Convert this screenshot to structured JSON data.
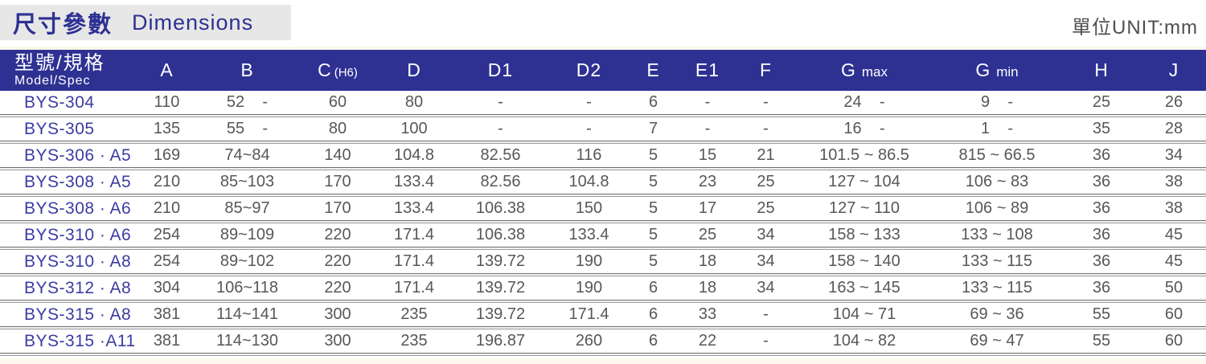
{
  "title": {
    "zh": "尺寸參數",
    "en": "Dimensions"
  },
  "unit_label": "單位UNIT:mm",
  "colors": {
    "header_blue": "#2e3192",
    "model_blue": "#3b3ca1",
    "data_gray": "#56575b",
    "title_band_gray": "#e7e7e7"
  },
  "table": {
    "header": {
      "model_main": "型號/規格",
      "model_sub": "Model/Spec",
      "cols": [
        {
          "main": "A",
          "sub": ""
        },
        {
          "main": "B",
          "sub": ""
        },
        {
          "main": "C",
          "sub": "(H6)"
        },
        {
          "main": "D",
          "sub": ""
        },
        {
          "main": "D1",
          "sub": ""
        },
        {
          "main": "D2",
          "sub": ""
        },
        {
          "main": "E",
          "sub": ""
        },
        {
          "main": "E1",
          "sub": ""
        },
        {
          "main": "F",
          "sub": ""
        },
        {
          "main": "G",
          "sub": "max"
        },
        {
          "main": "G",
          "sub": "min"
        },
        {
          "main": "H",
          "sub": ""
        },
        {
          "main": "J",
          "sub": ""
        }
      ]
    },
    "rows": [
      {
        "model": "BYS-304",
        "values": [
          "110",
          "52    -",
          "60",
          "80",
          "-",
          "-",
          "6",
          "-",
          "-",
          "24    -",
          "9    -",
          "25",
          "26"
        ]
      },
      {
        "model": "BYS-305",
        "values": [
          "135",
          "55    -",
          "80",
          "100",
          "-",
          "-",
          "7",
          "-",
          "-",
          "16    -",
          "1    -",
          "35",
          "28"
        ]
      },
      {
        "model": "BYS-306 · A5",
        "values": [
          "169",
          "74~84",
          "140",
          "104.8",
          "82.56",
          "116",
          "5",
          "15",
          "21",
          "101.5 ~ 86.5",
          "815 ~ 66.5",
          "36",
          "34"
        ]
      },
      {
        "model": "BYS-308 · A5",
        "values": [
          "210",
          "85~103",
          "170",
          "133.4",
          "82.56",
          "104.8",
          "5",
          "23",
          "25",
          "127 ~ 104",
          "106 ~ 83",
          "36",
          "38"
        ]
      },
      {
        "model": "BYS-308 · A6",
        "values": [
          "210",
          "85~97",
          "170",
          "133.4",
          "106.38",
          "150",
          "5",
          "17",
          "25",
          "127 ~ 110",
          "106 ~ 89",
          "36",
          "38"
        ]
      },
      {
        "model": "BYS-310 · A6",
        "values": [
          "254",
          "89~109",
          "220",
          "171.4",
          "106.38",
          "133.4",
          "5",
          "25",
          "34",
          "158 ~ 133",
          "133 ~ 108",
          "36",
          "45"
        ]
      },
      {
        "model": "BYS-310 · A8",
        "values": [
          "254",
          "89~102",
          "220",
          "171.4",
          "139.72",
          "190",
          "5",
          "18",
          "34",
          "158 ~ 140",
          "133 ~ 115",
          "36",
          "45"
        ]
      },
      {
        "model": "BYS-312 · A8",
        "values": [
          "304",
          "106~118",
          "220",
          "171.4",
          "139.72",
          "190",
          "6",
          "18",
          "34",
          "163 ~ 145",
          "133 ~ 115",
          "36",
          "50"
        ]
      },
      {
        "model": "BYS-315 · A8",
        "values": [
          "381",
          "114~141",
          "300",
          "235",
          "139.72",
          "171.4",
          "6",
          "33",
          "-",
          "104 ~ 71",
          "69 ~ 36",
          "55",
          "60"
        ]
      },
      {
        "model": "BYS-315 ·A11",
        "values": [
          "381",
          "114~130",
          "300",
          "235",
          "196.87",
          "260",
          "6",
          "22",
          "-",
          "104 ~ 82",
          "69 ~ 47",
          "55",
          "60"
        ]
      }
    ]
  }
}
